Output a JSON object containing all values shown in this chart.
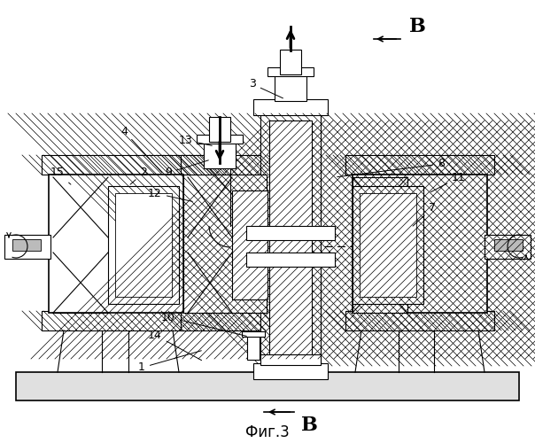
{
  "bg_color": "#ffffff",
  "line_color": "#000000",
  "fig_label": "Фиг.3",
  "view_label": "В"
}
